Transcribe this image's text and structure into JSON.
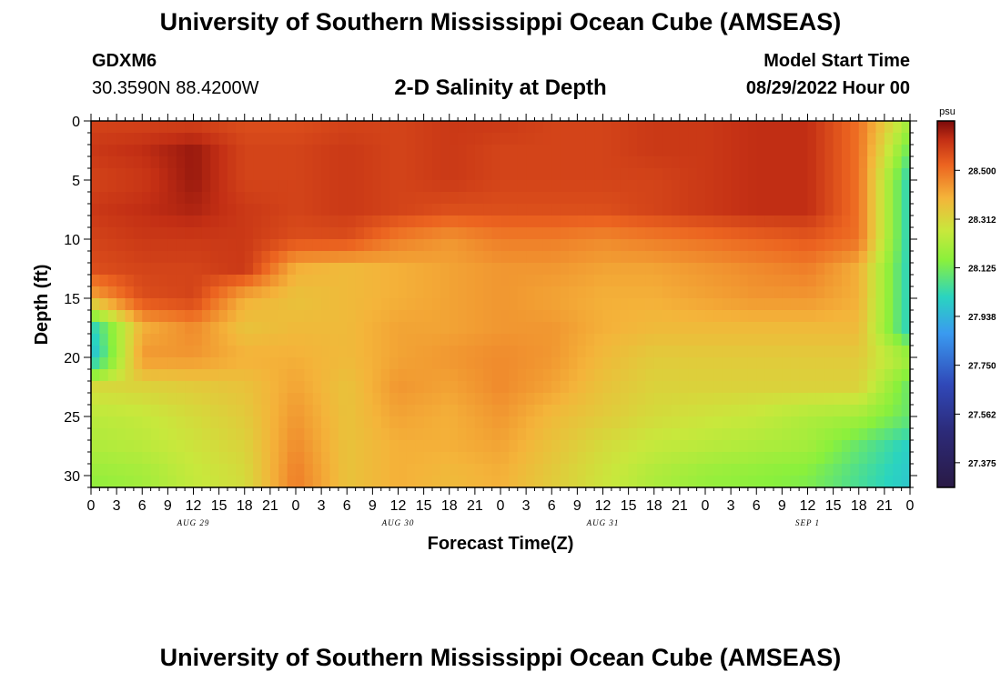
{
  "header": {
    "title": "University of Southern Mississippi Ocean Cube (AMSEAS)",
    "station": "GDXM6",
    "coordinates": "30.3590N  88.4200W",
    "subtitle": "2-D Salinity at Depth",
    "model_start_label": "Model Start Time",
    "model_start_value": "08/29/2022 Hour 00"
  },
  "footer": {
    "title": "University of Southern Mississippi Ocean Cube (AMSEAS)"
  },
  "chart_data": {
    "type": "heatmap",
    "title": "2-D Salinity at Depth",
    "xlabel": "Forecast Time(Z)",
    "ylabel": "Depth (ft)",
    "x_range_hours": [
      0,
      96
    ],
    "y_range_ft": [
      0,
      31
    ],
    "y_ticks": [
      0,
      5,
      10,
      15,
      20,
      25,
      30
    ],
    "x_tick_labels": [
      "0",
      "3",
      "6",
      "9",
      "12",
      "15",
      "18",
      "21",
      "0",
      "3",
      "6",
      "9",
      "12",
      "15",
      "18",
      "21",
      "0",
      "3",
      "6",
      "9",
      "12",
      "15",
      "18",
      "21",
      "0",
      "3",
      "6",
      "9",
      "12",
      "15",
      "18",
      "21",
      "0"
    ],
    "date_labels": [
      {
        "hour": 12,
        "label": "AUG 29"
      },
      {
        "hour": 36,
        "label": "AUG 30"
      },
      {
        "hour": 60,
        "label": "AUG 31"
      },
      {
        "hour": 84,
        "label": "SEP 1"
      }
    ],
    "colorbar": {
      "unit": "psu",
      "min": 27.28,
      "max": 28.69,
      "ticks": [
        "28.500",
        "28.312",
        "28.125",
        "27.938",
        "27.750",
        "27.562",
        "27.375"
      ]
    },
    "grid_hours": [
      0,
      6,
      12,
      18,
      24,
      30,
      36,
      42,
      48,
      54,
      60,
      66,
      72,
      78,
      84,
      90,
      96
    ],
    "grid_depths": [
      0,
      2.5,
      5,
      7.5,
      10,
      12.5,
      15,
      17.5,
      20,
      22.5,
      25,
      27.5,
      30,
      31
    ],
    "salinity_psu": [
      [
        28.58,
        28.58,
        28.58,
        28.56,
        28.56,
        28.58,
        28.58,
        28.6,
        28.6,
        28.58,
        28.58,
        28.6,
        28.6,
        28.62,
        28.62,
        28.5,
        28.2
      ],
      [
        28.6,
        28.62,
        28.66,
        28.58,
        28.58,
        28.6,
        28.58,
        28.6,
        28.58,
        28.58,
        28.58,
        28.6,
        28.6,
        28.62,
        28.62,
        28.5,
        28.1
      ],
      [
        28.58,
        28.6,
        28.66,
        28.58,
        28.58,
        28.6,
        28.58,
        28.6,
        28.58,
        28.58,
        28.58,
        28.58,
        28.6,
        28.62,
        28.62,
        28.5,
        28.0
      ],
      [
        28.6,
        28.62,
        28.64,
        28.6,
        28.58,
        28.6,
        28.58,
        28.56,
        28.56,
        28.56,
        28.56,
        28.58,
        28.6,
        28.62,
        28.62,
        28.5,
        28.0
      ],
      [
        28.58,
        28.6,
        28.6,
        28.6,
        28.56,
        28.56,
        28.48,
        28.44,
        28.48,
        28.48,
        28.46,
        28.48,
        28.5,
        28.52,
        28.54,
        28.5,
        28.0
      ],
      [
        28.56,
        28.58,
        28.58,
        28.6,
        28.4,
        28.38,
        28.4,
        28.42,
        28.44,
        28.44,
        28.42,
        28.42,
        28.44,
        28.46,
        28.48,
        28.4,
        28.0
      ],
      [
        28.4,
        28.56,
        28.58,
        28.4,
        28.36,
        28.38,
        28.4,
        28.42,
        28.44,
        28.42,
        28.4,
        28.4,
        28.42,
        28.44,
        28.44,
        28.4,
        28.0
      ],
      [
        28.0,
        28.4,
        28.46,
        28.36,
        28.38,
        28.38,
        28.42,
        28.42,
        28.44,
        28.44,
        28.4,
        28.38,
        28.38,
        28.38,
        28.38,
        28.38,
        28.0
      ],
      [
        27.94,
        28.44,
        28.44,
        28.4,
        28.4,
        28.38,
        28.42,
        28.44,
        28.46,
        28.44,
        28.38,
        28.34,
        28.34,
        28.34,
        28.34,
        28.34,
        28.2
      ],
      [
        28.3,
        28.32,
        28.34,
        28.36,
        28.42,
        28.36,
        28.44,
        28.42,
        28.46,
        28.42,
        28.36,
        28.32,
        28.32,
        28.32,
        28.32,
        28.32,
        28.1
      ],
      [
        28.24,
        28.26,
        28.3,
        28.34,
        28.44,
        28.36,
        28.42,
        28.4,
        28.44,
        28.38,
        28.34,
        28.3,
        28.28,
        28.26,
        28.22,
        28.2,
        28.1
      ],
      [
        28.22,
        28.24,
        28.28,
        28.32,
        28.46,
        28.36,
        28.4,
        28.4,
        28.42,
        28.36,
        28.3,
        28.26,
        28.24,
        28.22,
        28.2,
        28.1,
        28.0
      ],
      [
        28.18,
        28.2,
        28.26,
        28.3,
        28.48,
        28.36,
        28.4,
        28.38,
        28.4,
        28.34,
        28.28,
        28.22,
        28.18,
        28.16,
        28.14,
        28.06,
        27.98
      ],
      [
        28.16,
        28.2,
        28.26,
        28.3,
        28.48,
        28.36,
        28.4,
        28.38,
        28.4,
        28.34,
        28.28,
        28.22,
        28.18,
        28.16,
        28.14,
        28.06,
        27.98
      ]
    ]
  }
}
